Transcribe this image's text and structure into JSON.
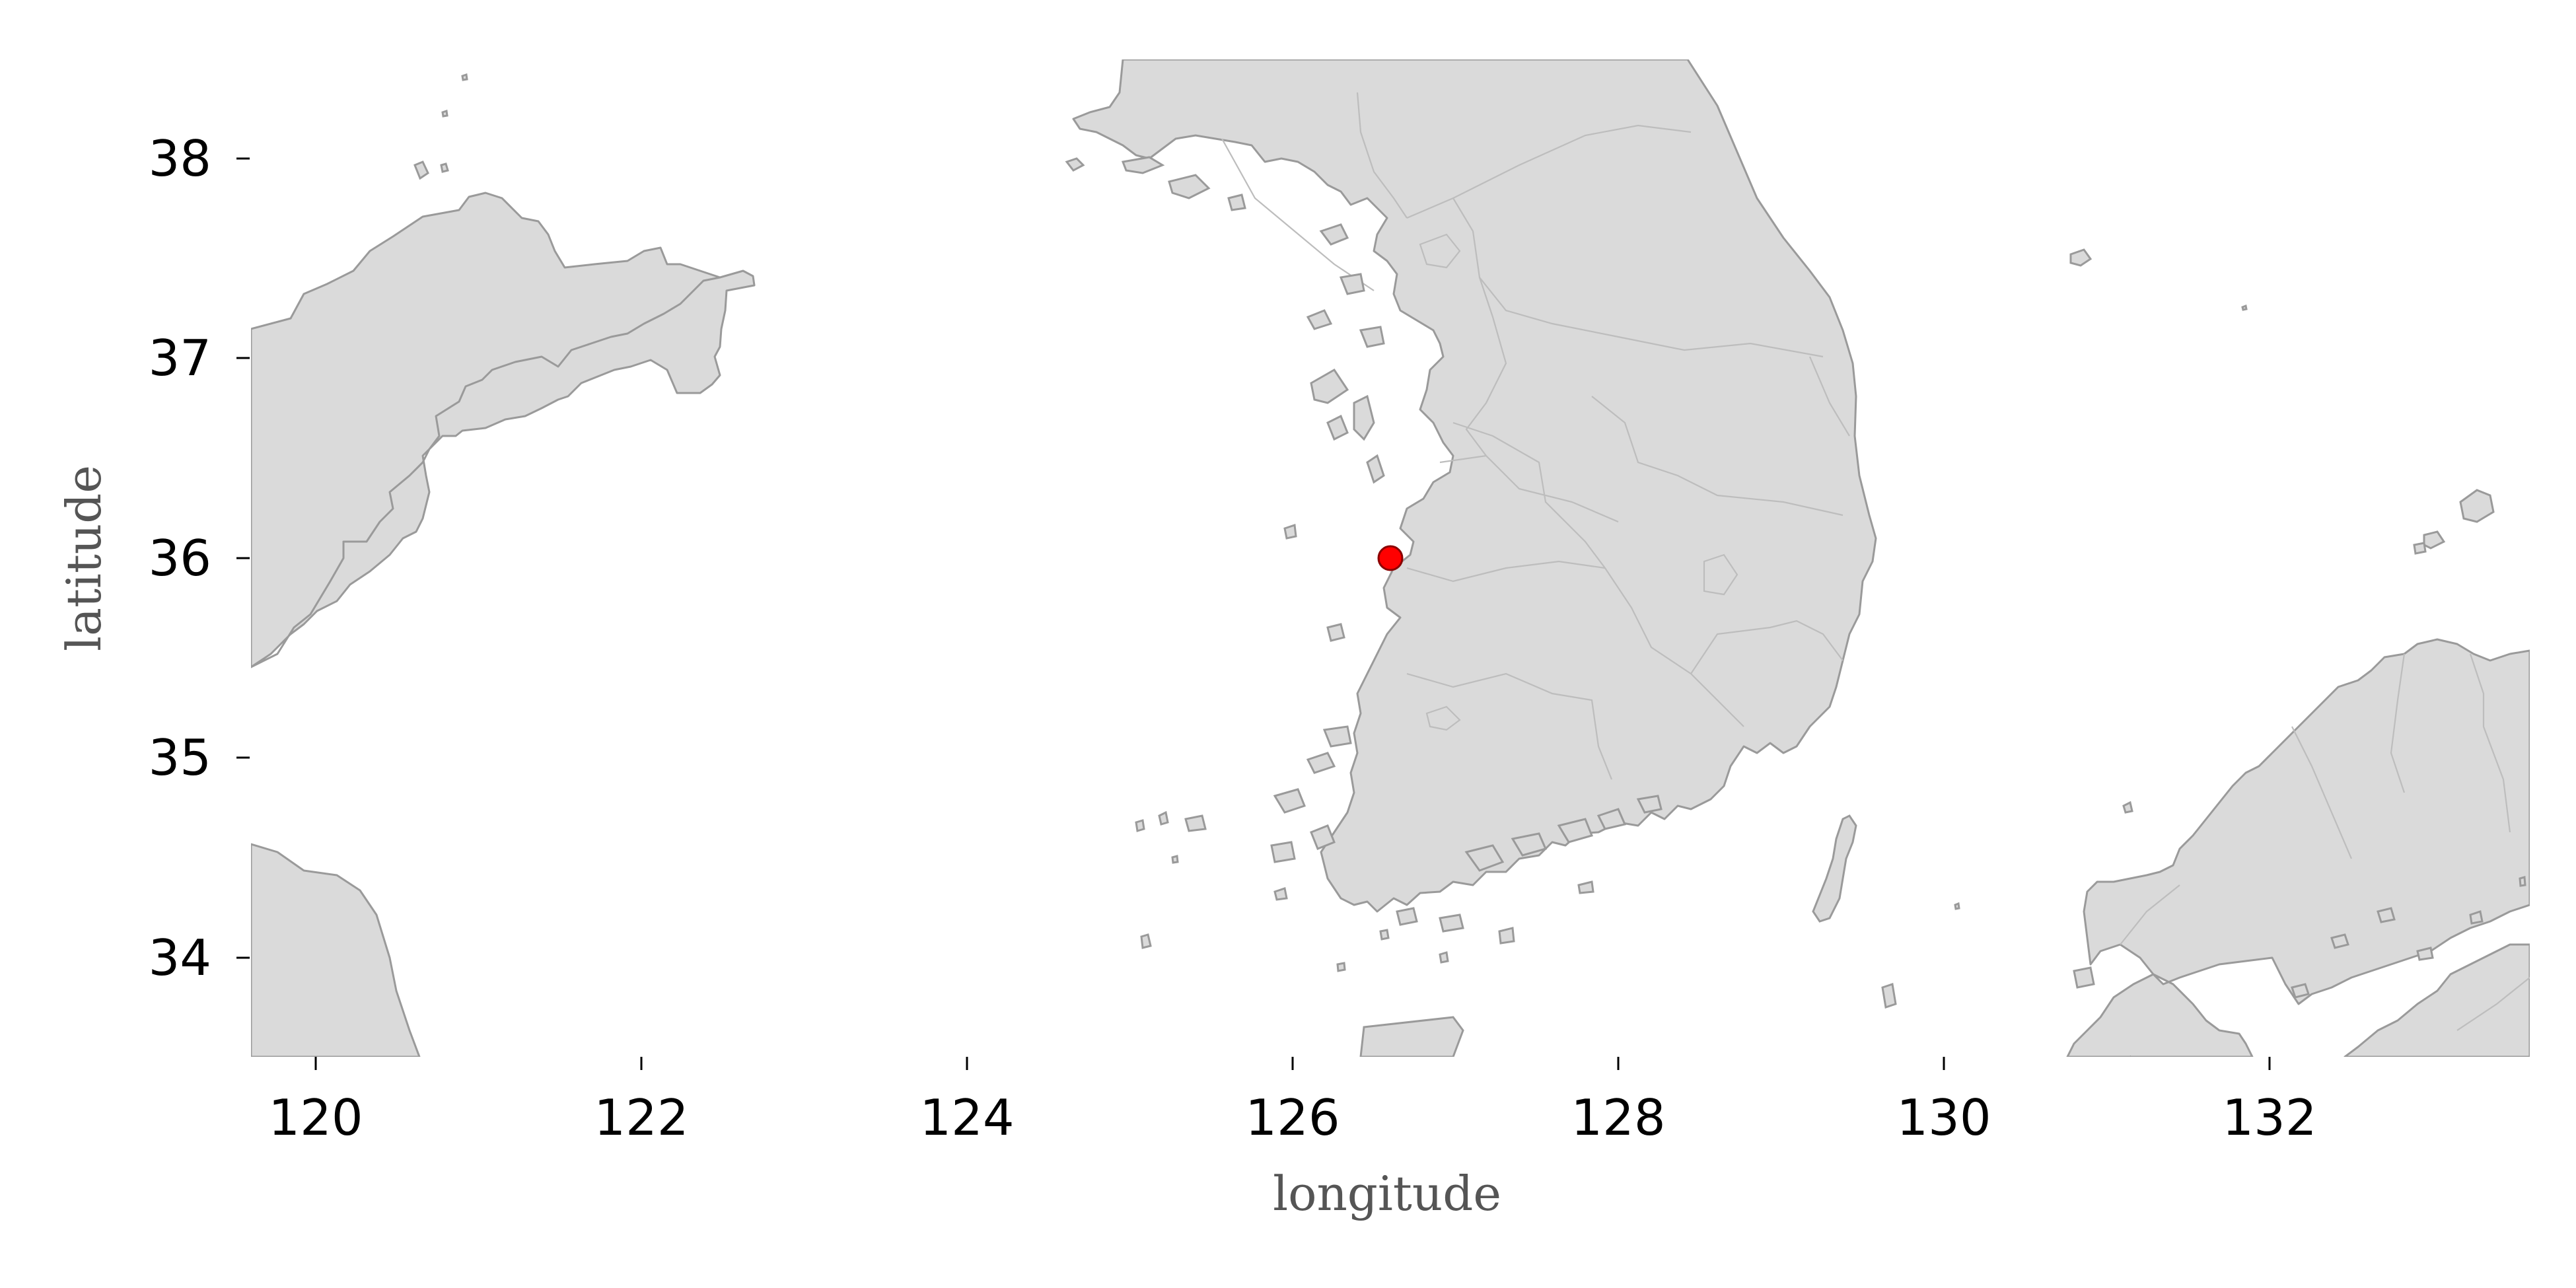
{
  "map": {
    "xlabel": "longitude",
    "ylabel": "latitude",
    "xlim": [
      119.6,
      133.6
    ],
    "ylim": [
      33.5,
      38.5
    ],
    "x_ticks": [
      "120",
      "122",
      "124",
      "126",
      "128",
      "130",
      "132"
    ],
    "y_ticks": [
      "38",
      "37",
      "36",
      "35",
      "34"
    ],
    "land_color": "#dadada",
    "coastline_color": "#9a9a9a",
    "border_color": "#bdbdbd",
    "marker": {
      "lon": 126.6,
      "lat": 36.0,
      "color": "#ff0000",
      "edge_color": "#8b0000"
    }
  }
}
